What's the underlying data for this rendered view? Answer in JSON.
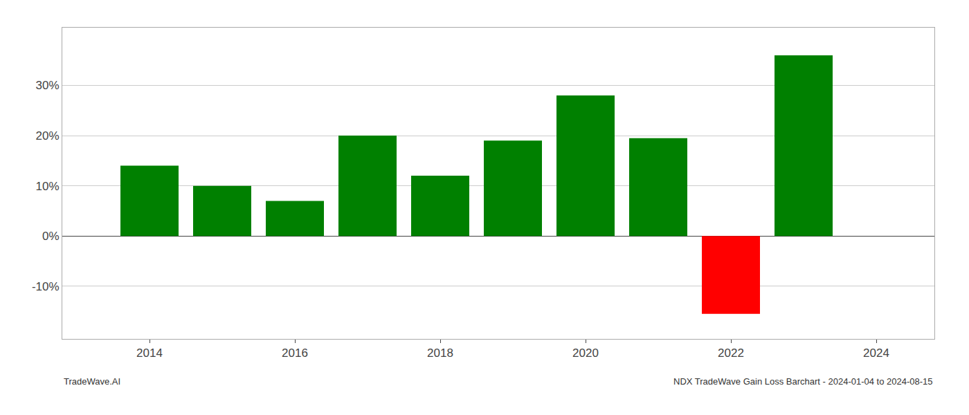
{
  "chart_data": {
    "type": "bar",
    "x": [
      2014,
      2015,
      2016,
      2017,
      2018,
      2019,
      2020,
      2021,
      2022,
      2023
    ],
    "values": [
      0.14,
      0.1,
      0.07,
      0.2,
      0.12,
      0.19,
      0.28,
      0.195,
      -0.155,
      0.36
    ],
    "colors": [
      "#008000",
      "#008000",
      "#008000",
      "#008000",
      "#008000",
      "#008000",
      "#008000",
      "#008000",
      "#ff0000",
      "#008000"
    ],
    "xlim": [
      2012.8,
      2024.8
    ],
    "xticks": [
      2014,
      2016,
      2018,
      2020,
      2022,
      2024
    ],
    "ylim": [
      -0.205,
      0.415
    ],
    "yticks": [
      {
        "value": -0.1,
        "label": "-10%"
      },
      {
        "value": 0.0,
        "label": "0%"
      },
      {
        "value": 0.1,
        "label": "10%"
      },
      {
        "value": 0.2,
        "label": "20%"
      },
      {
        "value": 0.3,
        "label": "30%"
      }
    ],
    "grid": true,
    "annotations": [
      "TradeWave.AI",
      "NDX TradeWave Gain Loss Barchart - 2024-01-04 to 2024-08-15"
    ]
  }
}
